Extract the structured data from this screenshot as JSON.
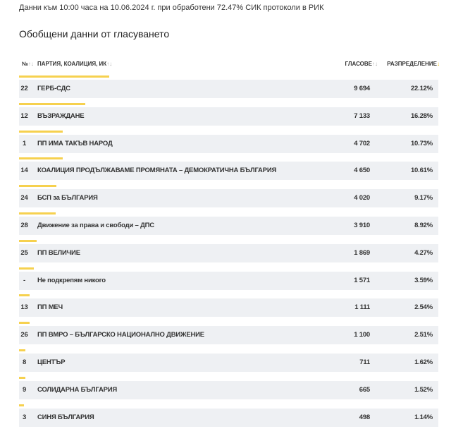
{
  "header": {
    "note": "Данни към 10:00 часа на 10.06.2024 г. при обработени 72.47% СИК протоколи в РИК",
    "title": "Обобщени данни от гласуването"
  },
  "table": {
    "columns": [
      "№",
      "ПАРТИЯ, КОАЛИЦИЯ, ИК",
      "ГЛАСОВЕ",
      "РАЗПРЕДЕЛЕНИЕ"
    ],
    "rows": [
      {
        "no": "22",
        "party": "ГЕРБ-СДС",
        "votes": "9 694",
        "share": 22.12,
        "share_label": "22.12%"
      },
      {
        "no": "12",
        "party": "ВЪЗРАЖДАНЕ",
        "votes": "7 133",
        "share": 16.28,
        "share_label": "16.28%"
      },
      {
        "no": "1",
        "party": "ПП ИМА ТАКЪВ НАРОД",
        "votes": "4 702",
        "share": 10.73,
        "share_label": "10.73%"
      },
      {
        "no": "14",
        "party": "КОАЛИЦИЯ ПРОДЪЛЖАВАМЕ ПРОМЯНАТА – ДЕМОКРАТИЧНА БЪЛГАРИЯ",
        "votes": "4 650",
        "share": 10.61,
        "share_label": "10.61%"
      },
      {
        "no": "24",
        "party": "БСП за БЪЛГАРИЯ",
        "votes": "4 020",
        "share": 9.17,
        "share_label": "9.17%"
      },
      {
        "no": "28",
        "party": "Движение за права и свободи – ДПС",
        "votes": "3 910",
        "share": 8.92,
        "share_label": "8.92%"
      },
      {
        "no": "25",
        "party": "ПП ВЕЛИЧИЕ",
        "votes": "1 869",
        "share": 4.27,
        "share_label": "4.27%"
      },
      {
        "no": "-",
        "party": "Не подкрепям никого",
        "votes": "1 571",
        "share": 3.59,
        "share_label": "3.59%"
      },
      {
        "no": "13",
        "party": "ПП МЕЧ",
        "votes": "1 111",
        "share": 2.54,
        "share_label": "2.54%"
      },
      {
        "no": "26",
        "party": "ПП ВМРО – БЪЛГАРСКО НАЦИОНАЛНО ДВИЖЕНИЕ",
        "votes": "1 100",
        "share": 2.51,
        "share_label": "2.51%"
      },
      {
        "no": "8",
        "party": "ЦЕНТЪР",
        "votes": "711",
        "share": 1.62,
        "share_label": "1.62%"
      },
      {
        "no": "9",
        "party": "СОЛИДАРНА БЪЛГАРИЯ",
        "votes": "665",
        "share": 1.52,
        "share_label": "1.52%"
      },
      {
        "no": "3",
        "party": "СИНЯ БЪЛГАРИЯ",
        "votes": "498",
        "share": 1.14,
        "share_label": "1.14%"
      }
    ]
  }
}
